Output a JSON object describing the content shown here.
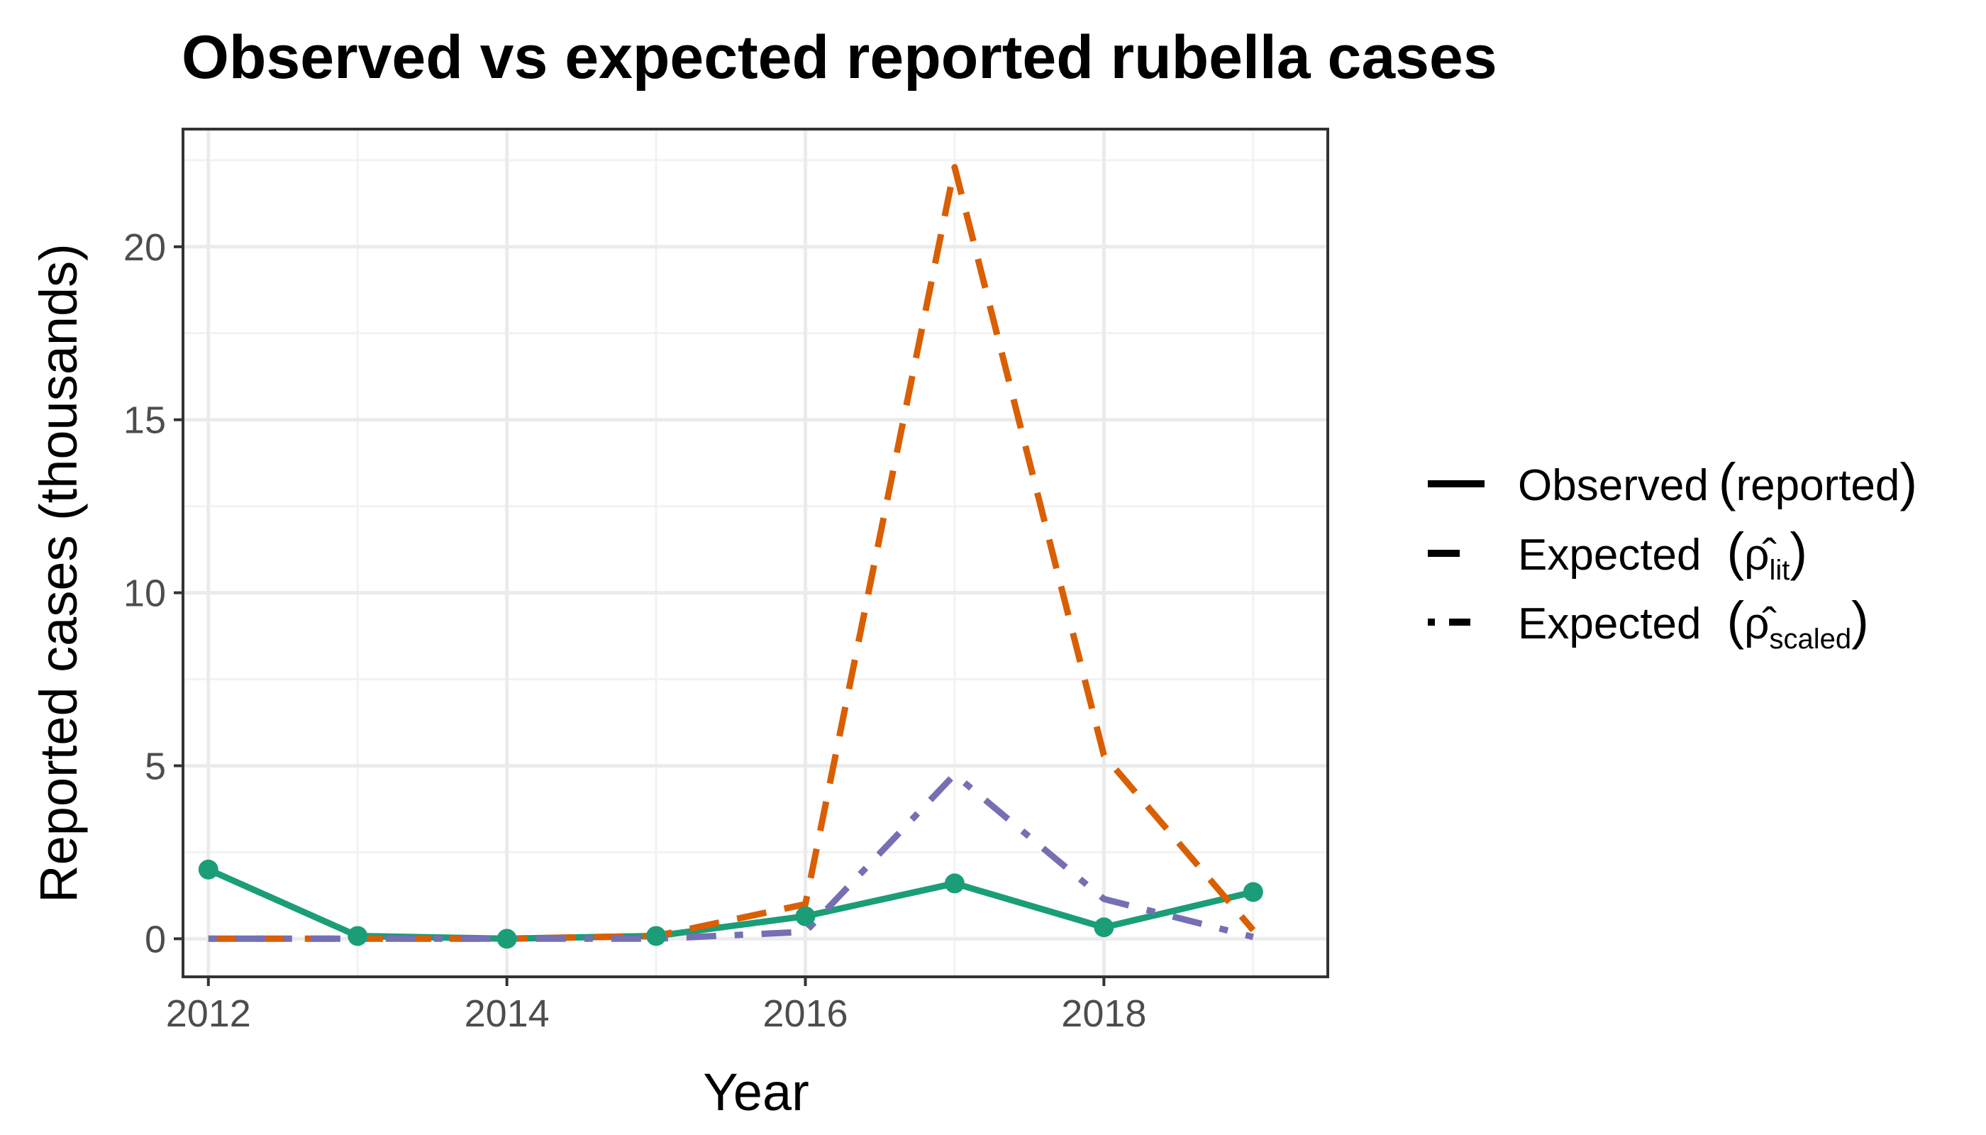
{
  "chart_data": {
    "type": "line",
    "title": "Observed vs expected reported rubella cases",
    "xlabel": "Year",
    "ylabel": "Reported cases (thousands)",
    "xlim": [
      2011.83,
      2019.5
    ],
    "ylim": [
      -1.1,
      23.4
    ],
    "x_ticks": [
      2012,
      2014,
      2016,
      2018
    ],
    "y_ticks": [
      0,
      5,
      10,
      15,
      20
    ],
    "grid": true,
    "legend_position": "right",
    "x": [
      2012,
      2013,
      2014,
      2015,
      2016,
      2017,
      2018,
      2019
    ],
    "series": [
      {
        "key": "observed",
        "color": "#1b9e77",
        "dash": "solid",
        "markers": true,
        "values": [
          2.0,
          0.08,
          0.0,
          0.08,
          0.65,
          1.6,
          0.33,
          1.35
        ]
      },
      {
        "key": "lit",
        "color": "#d95f02",
        "dash": "dashed",
        "markers": false,
        "values": [
          0.0,
          0.0,
          0.0,
          0.08,
          1.0,
          22.3,
          5.3,
          0.25
        ]
      },
      {
        "key": "scaled",
        "color": "#7570b3",
        "dash": "dotdash",
        "markers": false,
        "values": [
          0.0,
          0.0,
          0.0,
          0.0,
          0.2,
          4.75,
          1.15,
          0.05
        ]
      }
    ],
    "legend": {
      "observed": {
        "main": "Observed",
        "paren": "reported"
      },
      "lit": {
        "main": "Expected",
        "symbol": "ρ̂",
        "sub": "lit"
      },
      "scaled": {
        "main": "Expected",
        "symbol": "ρ̂",
        "sub": "scaled"
      }
    }
  }
}
